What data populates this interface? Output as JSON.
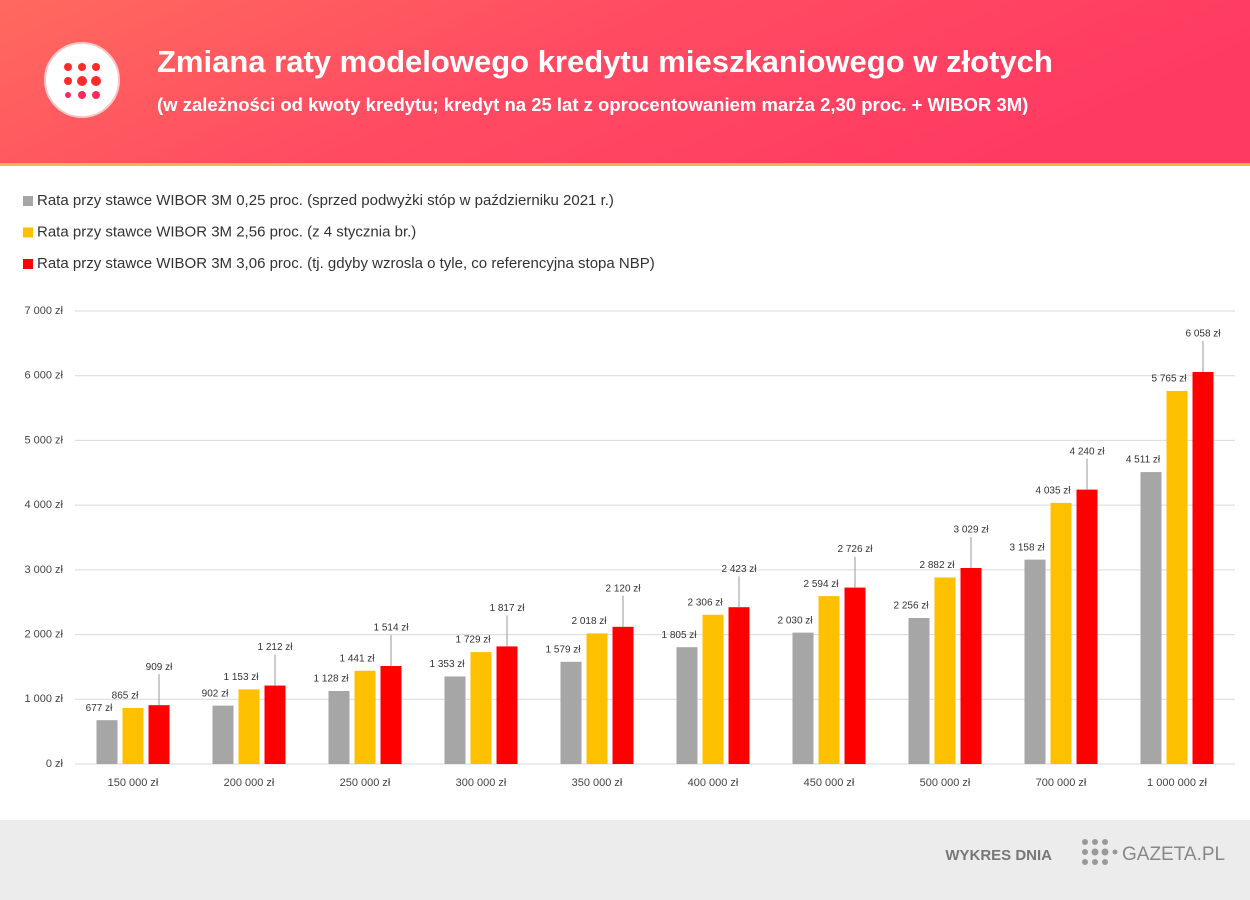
{
  "chart_data": {
    "type": "bar",
    "title": "Zmiana raty modelowego kredytu mieszkaniowego w złotych",
    "subtitle": "(w zależności od kwoty kredytu; kredyt na 25 lat z oprocentowaniem marża 2,30 proc. + WIBOR 3M)",
    "categories": [
      "150 000 zł",
      "200 000 zł",
      "250 000 zł",
      "300 000 zł",
      "350 000 zł",
      "400 000 zł",
      "450 000 zł",
      "500 000 zł",
      "700 000 zł",
      "1 000 000 zł"
    ],
    "series": [
      {
        "name": "Rata przy stawce WIBOR 3M 0,25 proc. (sprzed podwyżki stóp w październiku 2021 r.)",
        "color": "#a6a6a6",
        "values": [
          677,
          902,
          1128,
          1353,
          1579,
          1805,
          2030,
          2256,
          3158,
          4511
        ],
        "value_labels": [
          "677 zł",
          "902 zł",
          "1 128 zł",
          "1 353 zł",
          "1 579 zł",
          "1 805 zł",
          "2 030 zł",
          "2 256 zł",
          "3 158 zł",
          "4 511 zł"
        ]
      },
      {
        "name": "Rata przy stawce WIBOR 3M 2,56 proc. (z 4 stycznia br.)",
        "color": "#ffc000",
        "values": [
          865,
          1153,
          1441,
          1729,
          2018,
          2306,
          2594,
          2882,
          4035,
          5765
        ],
        "value_labels": [
          "865 zł",
          "1 153 zł",
          "1 441 zł",
          "1 729 zł",
          "2 018 zł",
          "2 306 zł",
          "2 594 zł",
          "2 882 zł",
          "4 035 zł",
          "5 765 zł"
        ]
      },
      {
        "name": "Rata przy stawce WIBOR 3M 3,06 proc. (tj. gdyby wzrosla o tyle, co referencyjna stopa NBP)",
        "color": "#ff0000",
        "values": [
          909,
          1212,
          1514,
          1817,
          2120,
          2423,
          2726,
          3029,
          4240,
          6058
        ],
        "value_labels": [
          "909 zł",
          "1 212 zł",
          "1 514 zł",
          "1 817 zł",
          "2 120 zł",
          "2 423 zł",
          "2 726 zł",
          "3 029 zł",
          "4 240 zł",
          "6 058 zł"
        ]
      }
    ],
    "ylim": [
      0,
      7000
    ],
    "yticks": [
      {
        "value": 0,
        "label": "0 zł"
      },
      {
        "value": 1000,
        "label": "1 000 zł"
      },
      {
        "value": 2000,
        "label": "2 000 zł"
      },
      {
        "value": 3000,
        "label": "3 000 zł"
      },
      {
        "value": 4000,
        "label": "4 000 zł"
      },
      {
        "value": 5000,
        "label": "5 000 zł"
      },
      {
        "value": 6000,
        "label": "6 000 zł"
      },
      {
        "value": 7000,
        "label": "7 000 zł"
      }
    ],
    "grid": true
  },
  "footer": {
    "label": "WYKRES DNIA",
    "brand": "GAZETA.PL"
  }
}
